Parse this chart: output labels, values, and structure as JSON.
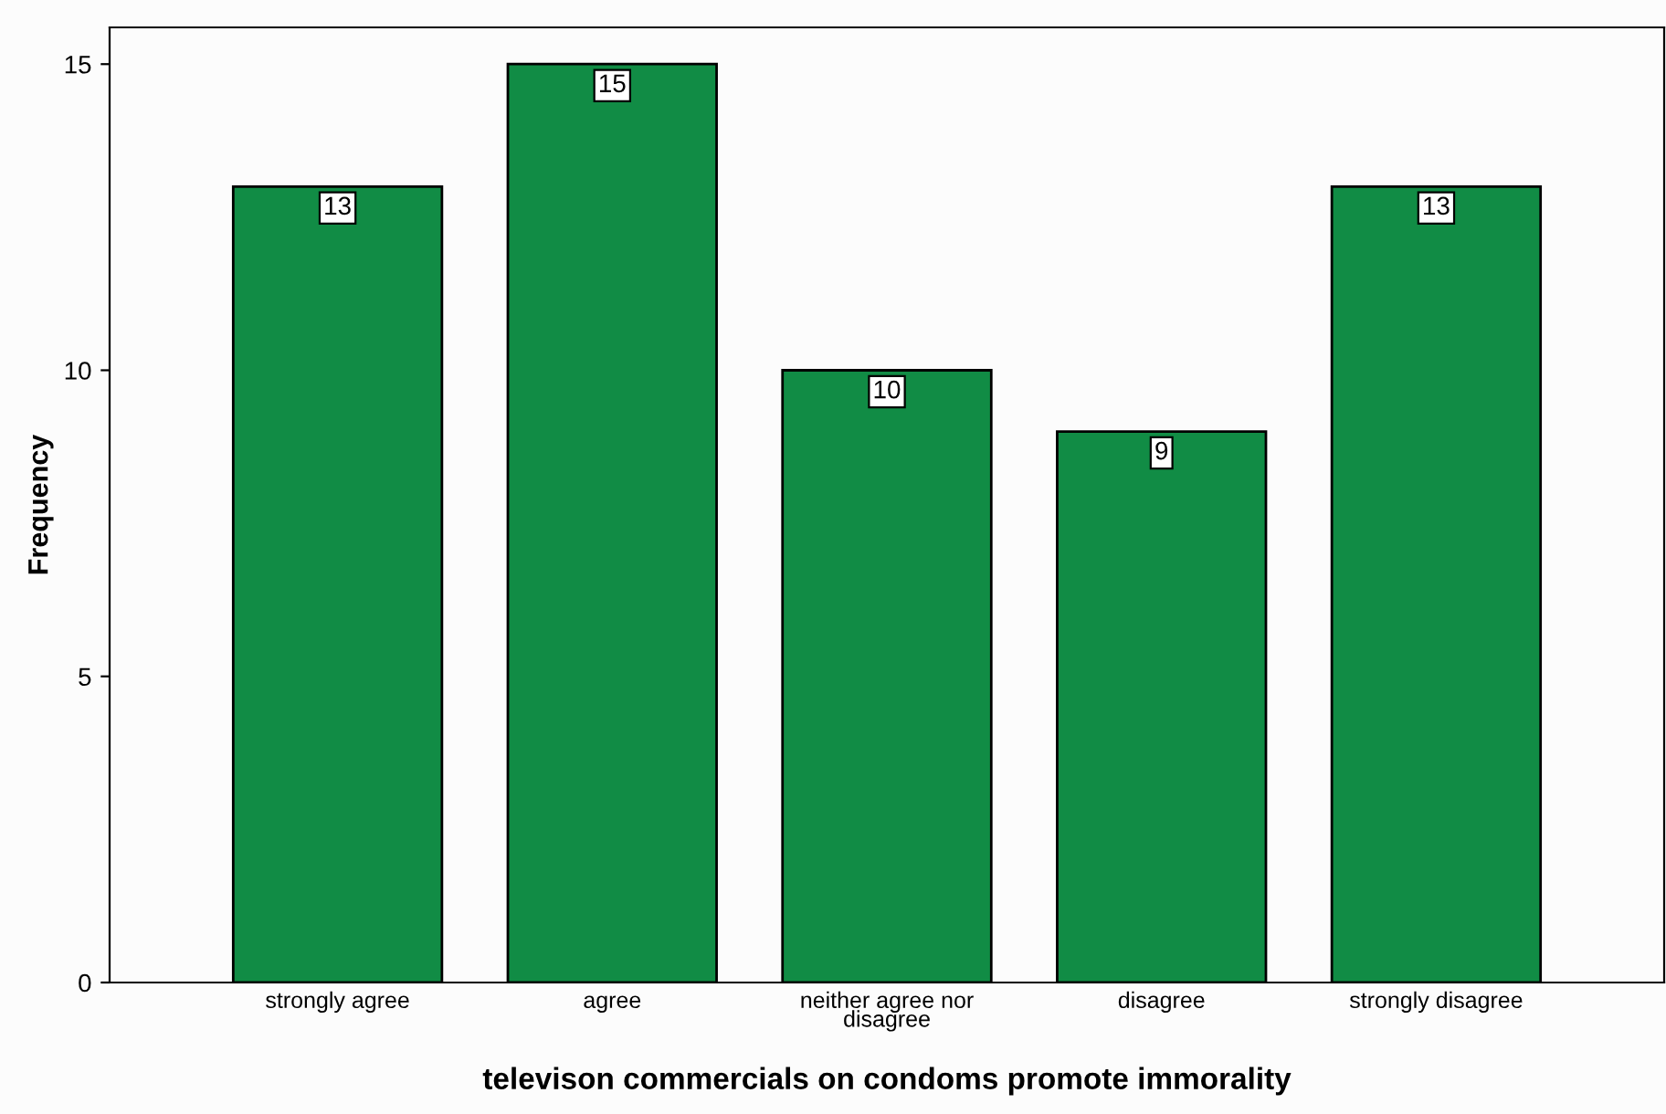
{
  "chart_data": {
    "type": "bar",
    "xlabel": "televison commercials on condoms promote immorality",
    "ylabel": "Frequency",
    "categories": [
      "strongly agree",
      "agree",
      "neither agree nor\ndisagree",
      "disagree",
      "strongly disagree"
    ],
    "values": [
      13,
      15,
      10,
      9,
      13
    ],
    "color": "#118c45",
    "ylim": [
      0,
      15.6
    ],
    "yticks": [
      0,
      5,
      10,
      15
    ],
    "data_labels": true,
    "grid": false,
    "legend": false
  }
}
